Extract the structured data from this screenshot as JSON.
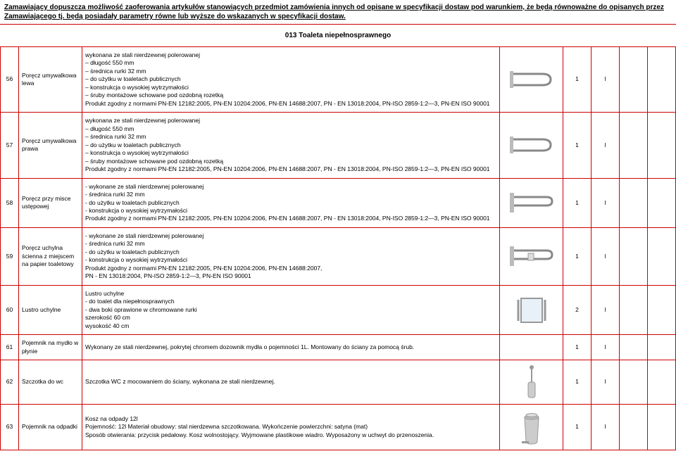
{
  "header_note": "Zamawiający dopuszcza możliwość zaoferowania artykułów stanowiących przedmiot zamówienia innych od opisane w specyfikacji dostaw pod warunkiem, że będą równoważne do opisanych przez Zamawiającego tj. będą posiadały parametry równe lub wyższe do wskazanych w specyfikacji dostaw.",
  "section_title": "013 Toaleta niepełnosprawnego",
  "rows": [
    {
      "num": "56",
      "name": "Poręcz umywalkowa lewa",
      "desc": "wykonana ze stali nierdzewnej polerowanej\n– długość 550 mm\n– średnica rurki 32 mm\n– do użytku w toaletach publicznych\n– konstrukcja o wysokiej wytrzymałości\n– śruby montażowe schowane pod ozdobną rozetką\nProdukt zgodny z normami PN-EN 12182:2005, PN-EN 10204:2006, PN-EN 14688:2007, PN - EN 13018:2004, PN-ISO 2859-1:2—3, PN-EN ISO 90001",
      "qty": "1",
      "unit": "l",
      "icon": "rail-left"
    },
    {
      "num": "57",
      "name": "Poręcz umywalkowa prawa",
      "desc": "wykonana ze stali nierdzewnej polerowanej\n– długość 550 mm\n– średnica rurki 32 mm\n– do użytku w toaletach publicznych\n– konstrukcja o wysokiej wytrzymałości\n– śruby montażowe schowane pod ozdobną rozetką\nProdukt zgodny z normami PN-EN 12182:2005, PN-EN 10204:2006, PN-EN 14688:2007, PN - EN 13018:2004, PN-ISO 2859-1:2—3, PN-EN ISO 90001",
      "qty": "1",
      "unit": "l",
      "icon": "rail-right"
    },
    {
      "num": "58",
      "name": "Poręcz przy misce ustępowej",
      "desc": "- wykonane ze stali nierdzewnej polerowanej\n- średnica rurki 32 mm\n- do użytku w toaletach publicznych\n- konstrukcja o wysokiej wytrzymałości\nProdukt zgodny z normami PN-EN 12182:2005, PN-EN 10204:2006, PN-EN 14688:2007, PN - EN 13018:2004, PN-ISO 2859-1:2—3, PN-EN ISO 90001",
      "qty": "1",
      "unit": "l",
      "icon": "rail-fold"
    },
    {
      "num": "59",
      "name": "Poręcz uchylna ścienna z miejscem na papier toaletowy",
      "desc": "- wykonane ze stali nierdzewnej polerowanej\n- średnica rurki 32 mm\n- do użytku w toaletach publicznych\n- konstrukcja o wysokiej wytrzymałości\nProdukt zgodny z normami PN-EN 12182:2005, PN-EN 10204:2006, PN-EN 14688:2007,\nPN - EN 13018:2004, PN-ISO 2859-1:2—3, PN-EN ISO 90001",
      "qty": "1",
      "unit": "l",
      "icon": "rail-fold-paper"
    },
    {
      "num": "60",
      "name": "Lustro uchylne",
      "desc": "Lustro uchylne\n- do toalet dla niepełnosprawnych\n- dwa boki oprawione w chromowane rurki\nszerokość 60 cm\nwysokość 40 cm",
      "qty": "2",
      "unit": "l",
      "icon": "mirror"
    },
    {
      "num": "61",
      "name": "Pojemnik na mydło w płynie",
      "desc": "Wykonany ze stali nierdzewnej, pokrytej chromem dozownik mydła o pojemności 1L. Montowany do ściany za pomocą śrub.",
      "qty": "1",
      "unit": "l",
      "icon": "none"
    },
    {
      "num": "62",
      "name": "Szczotka do wc",
      "desc": "Szczotka WC z mocowaniem do ściany, wykonana ze stali nierdzewnej.",
      "qty": "1",
      "unit": "l",
      "icon": "brush"
    },
    {
      "num": "63",
      "name": "Pojemnik na odpadki",
      "desc": "Kosz na odpady 12l\nPojemność: 12l Materiał obudowy: stal nierdzewna szczotkowana. Wykończenie powierzchni: satyna (mat)\nSposób otwierania: przycisk pedałowy. Kosz wolnostojący. Wyjmowane plastikowe wiadro. Wyposażony w uchwyt do przenoszenia.",
      "qty": "1",
      "unit": "l",
      "icon": "bin"
    }
  ]
}
